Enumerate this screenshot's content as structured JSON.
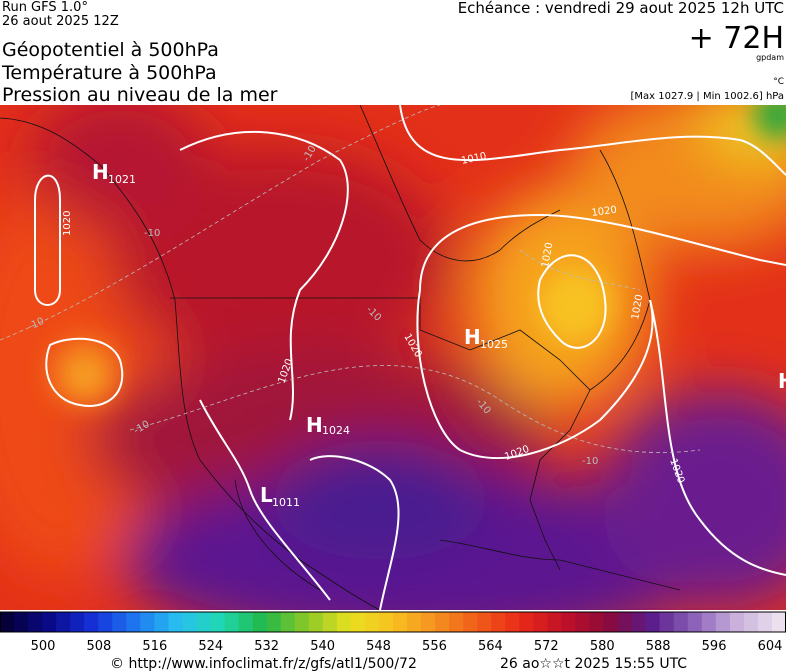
{
  "header": {
    "run": "Run GFS 1.0°",
    "date": "26 aout 2025 12Z",
    "echeance": "Echéance : vendredi 29 aout 2025 12h UTC",
    "lead": "+ 72H",
    "unit_geo": "gpdam",
    "unit_temp": "°C",
    "range": "[Max 1027.9 | Min 1002.6] hPa",
    "titles": [
      "Géopotentiel à 500hPa",
      "Température à 500hPa",
      "Pression au niveau de la mer"
    ]
  },
  "map": {
    "centers": [
      {
        "symbol": "H",
        "value": "1021"
      },
      {
        "symbol": "H",
        "value": "1025"
      },
      {
        "symbol": "H",
        "value": "1024"
      },
      {
        "symbol": "L",
        "value": "1011"
      },
      {
        "symbol": "H"
      }
    ],
    "isobars": [
      "1020",
      "1010",
      "1020",
      "1020",
      "1020",
      "1020",
      "1020",
      "1020",
      "1020"
    ],
    "isotherms": [
      "-10",
      "-10",
      "-10",
      "-10",
      "-10",
      "-10",
      "-10"
    ]
  },
  "colorbar": {
    "labels": [
      500,
      508,
      516,
      524,
      532,
      540,
      548,
      556,
      564,
      572,
      580,
      588,
      596,
      604
    ]
  },
  "footer": {
    "source": "© http://www.infoclimat.fr/z/gfs/atl1/500/72",
    "time": "26 ao☆☆t 2025 15:55 UTC"
  }
}
